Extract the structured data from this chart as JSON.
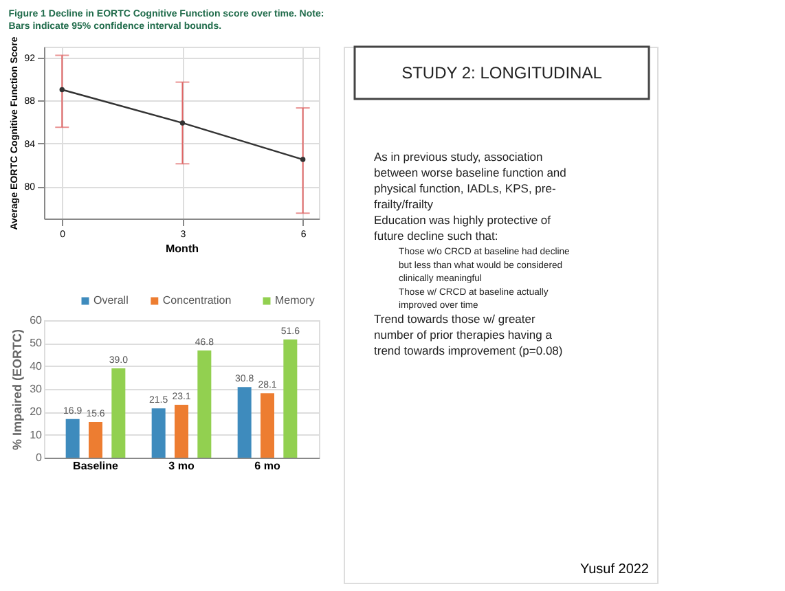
{
  "chart_data": [
    {
      "type": "line",
      "title": "Figure 1  Decline in EORTC Cognitive Function score over time. Note: Bars indicate 95% confidence interval bounds.",
      "xlabel": "Month",
      "ylabel": "Average EORTC Cognitive Function Score",
      "x": [
        0,
        3,
        6
      ],
      "values": [
        89.0,
        85.9,
        82.5
      ],
      "color": "#333333",
      "errors": [
        [
          85.5,
          92.2
        ],
        [
          82.1,
          89.7
        ],
        [
          77.5,
          87.3
        ]
      ],
      "xlim": [
        -0.45,
        6.4
      ],
      "ylim": [
        77,
        93
      ],
      "xticks": [
        0,
        3,
        6
      ],
      "yticks": [
        80,
        84,
        88,
        92
      ],
      "grid": true,
      "marker": "circle"
    },
    {
      "type": "bar",
      "ylabel": "% Impaired (EORTC)",
      "categories": [
        "Baseline",
        "3 mo",
        "6 mo"
      ],
      "ylim": [
        0,
        60
      ],
      "yticks": [
        0,
        10,
        20,
        30,
        40,
        50,
        60
      ],
      "grid": "y",
      "legend": "top",
      "series": [
        {
          "name": "Overall",
          "color": "#3e8bbd",
          "values": [
            16.9,
            21.5,
            30.8
          ],
          "value_labels": [
            "16.9",
            "21.5",
            "30.8"
          ]
        },
        {
          "name": "Concentration",
          "color": "#ed7d31",
          "values": [
            15.6,
            23.1,
            28.1
          ],
          "value_labels": [
            "15.6",
            "23.1",
            "28.1"
          ]
        },
        {
          "name": "Memory",
          "color": "#92d050",
          "values": [
            39.0,
            46.8,
            51.6
          ],
          "value_labels": [
            "39.0",
            "46.8",
            "51.6"
          ]
        }
      ]
    },
    {
      "type": "other",
      "title": "STUDY 2: LONGITUDINAL",
      "annotations": [
        "As in previous study, association between worse baseline function and physical function, IADLs, KPS, pre-frailty/frailty",
        "Education was highly protective of future decline such that:",
        "Those w/o CRCD at baseline had decline but less than what would be considered clinically meaningful",
        "Those w/ CRCD at baseline actually improved over time",
        "Trend towards those w/ greater number of prior therapies having a trend towards improvement (p=0.08)",
        "Yusuf 2022"
      ]
    }
  ]
}
